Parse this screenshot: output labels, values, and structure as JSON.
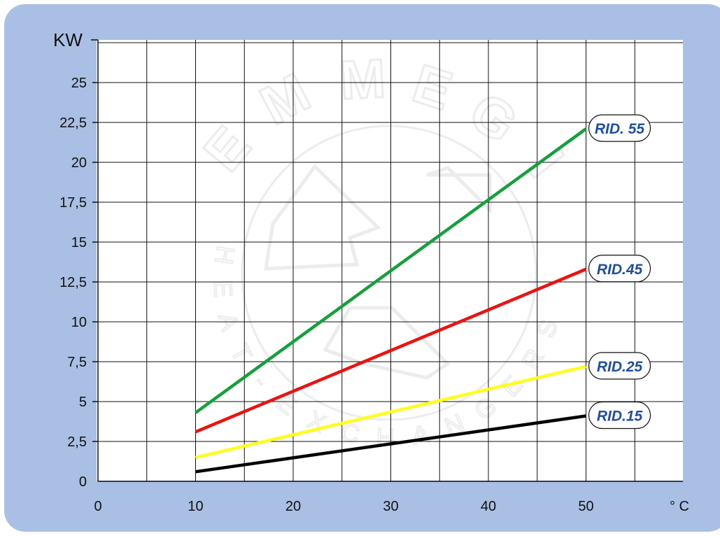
{
  "chart_data": {
    "type": "line",
    "xlabel": "° C",
    "ylabel": "KW",
    "xlim": [
      0,
      60
    ],
    "ylim": [
      0,
      27.5
    ],
    "x_ticks": [
      0,
      10,
      20,
      30,
      40,
      50
    ],
    "x_tick_labels": [
      "0",
      "10",
      "20",
      "30",
      "40",
      "50"
    ],
    "y_ticks": [
      0,
      2.5,
      5,
      7.5,
      10,
      12.5,
      15,
      17.5,
      20,
      22.5,
      25
    ],
    "y_tick_labels": [
      "0",
      "2,5",
      "5",
      "7,5",
      "10",
      "12,5",
      "15",
      "17,5",
      "20",
      "22,5",
      "25"
    ],
    "x_grid": [
      5,
      10,
      15,
      20,
      25,
      30,
      35,
      40,
      45,
      50,
      55
    ],
    "y_grid": [
      2.5,
      5,
      7.5,
      10,
      12.5,
      15,
      17.5,
      20,
      22.5,
      25,
      27.5
    ],
    "grid": true,
    "watermark": {
      "arc_letters_top": [
        "E",
        "M",
        "M",
        "E",
        "G",
        "I"
      ],
      "arc_text_bottom": [
        "H",
        "E",
        "A",
        "T",
        "-",
        "E",
        "X",
        "C",
        "H",
        "A",
        "N",
        "G",
        "E",
        "R",
        "S"
      ]
    },
    "series": [
      {
        "name": "RID. 55",
        "color": "#15a03c",
        "x": [
          10,
          50
        ],
        "y": [
          4.3,
          22.1
        ]
      },
      {
        "name": "RID.45",
        "color": "#ee1111",
        "x": [
          10,
          50
        ],
        "y": [
          3.1,
          13.3
        ]
      },
      {
        "name": "RID.25",
        "color": "#ffff1e",
        "x": [
          10,
          50
        ],
        "y": [
          1.5,
          7.2
        ]
      },
      {
        "name": "RID.15",
        "color": "#000000",
        "x": [
          10,
          50
        ],
        "y": [
          0.6,
          4.1
        ]
      }
    ]
  }
}
